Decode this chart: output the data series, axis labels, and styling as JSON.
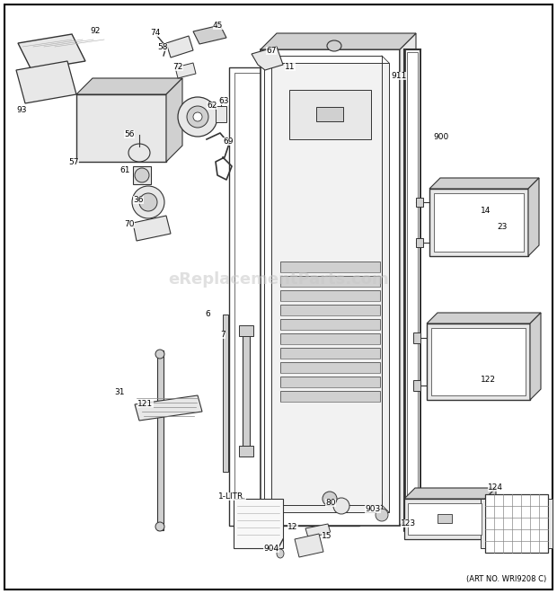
{
  "background_color": "#ffffff",
  "border_color": "#000000",
  "watermark_text": "eReplacementParts.com",
  "watermark_color": "#c8c8c8",
  "watermark_alpha": 0.55,
  "art_no_text": "(ART NO. WRI9208 C)",
  "fig_width": 6.2,
  "fig_height": 6.61,
  "dpi": 100,
  "line_color": "#333333",
  "fill_light": "#e8e8e8",
  "fill_mid": "#d0d0d0",
  "fill_dark": "#b8b8b8"
}
